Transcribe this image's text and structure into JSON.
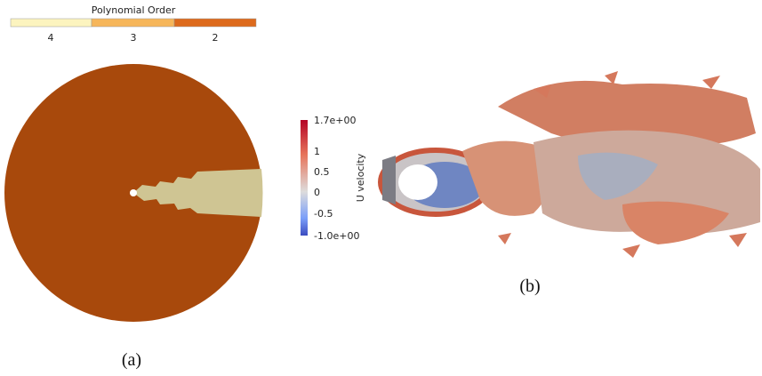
{
  "panel_a": {
    "legend_title": "Polynomial Order",
    "legend_labels": [
      "4",
      "3",
      "2"
    ],
    "caption": "(a)"
  },
  "panel_b": {
    "colorbar_title": "U velocity",
    "colorbar_labels": [
      "1.7e+00",
      "1",
      "0.5",
      "0",
      "-0.5",
      "-1.0e+00"
    ],
    "caption": "(b)"
  }
}
